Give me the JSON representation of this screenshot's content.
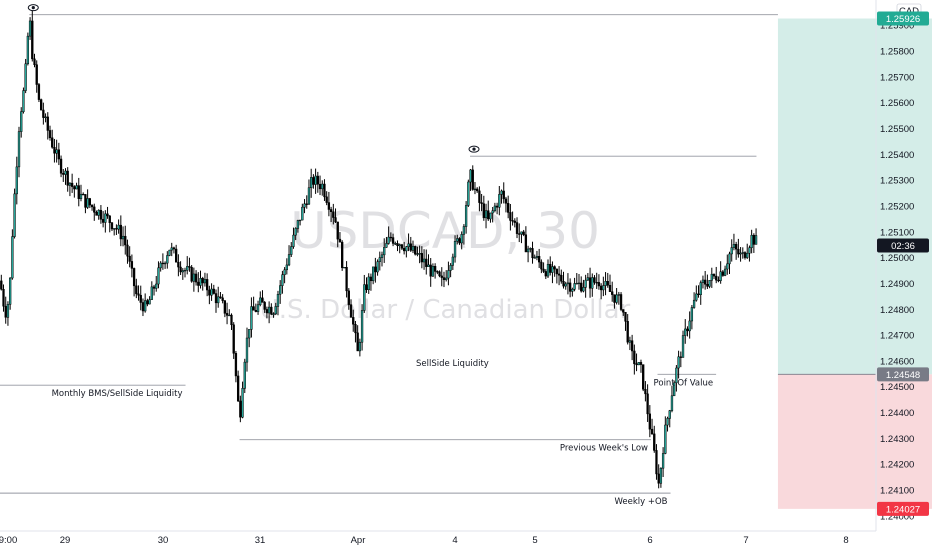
{
  "symbol_watermark": "USDCAD, 30",
  "description_watermark": "U.S. Dollar / Canadian Dollar",
  "currency": "CAD",
  "countdown": "02:36",
  "colors": {
    "up": "#26a69a",
    "down": "#000000",
    "profit_zone": "#d4ede8",
    "loss_zone": "#f9d9dc",
    "target_badge": "#22ab94",
    "entry_badge": "#787b86",
    "stop_badge": "#f23645",
    "countdown_badge": "#131722"
  },
  "chart_data": {
    "type": "candlestick",
    "title": "",
    "x_ticks": [
      "9:00",
      "29",
      "30",
      "31",
      "Apr",
      "4",
      "5",
      "6",
      "7",
      "8"
    ],
    "y_ticks": [
      "1.25900",
      "1.25800",
      "1.25700",
      "1.25600",
      "1.25500",
      "1.25400",
      "1.25300",
      "1.25200",
      "1.25100",
      "1.25000",
      "1.24900",
      "1.24800",
      "1.24700",
      "1.24600",
      "1.24500",
      "1.24400",
      "1.24300",
      "1.24200",
      "1.24100",
      "1.24000"
    ],
    "ylim": [
      1.2398,
      1.2599
    ],
    "close_path": [
      [
        0,
        1.2491
      ],
      [
        0.05,
        1.2483
      ],
      [
        0.1,
        1.2478
      ],
      [
        0.15,
        1.2488
      ],
      [
        0.2,
        1.2515
      ],
      [
        0.3,
        1.2554
      ],
      [
        0.38,
        1.2567
      ],
      [
        0.45,
        1.2594
      ],
      [
        0.5,
        1.2578
      ],
      [
        0.6,
        1.256
      ],
      [
        0.75,
        1.2548
      ],
      [
        0.9,
        1.2537
      ],
      [
        1.1,
        1.2528
      ],
      [
        1.3,
        1.2522
      ],
      [
        1.5,
        1.2518
      ],
      [
        1.7,
        1.2514
      ],
      [
        1.9,
        1.2508
      ],
      [
        2.0,
        1.2496
      ],
      [
        2.1,
        1.2485
      ],
      [
        2.25,
        1.248
      ],
      [
        2.45,
        1.2495
      ],
      [
        2.6,
        1.2504
      ],
      [
        2.8,
        1.2496
      ],
      [
        3.0,
        1.2492
      ],
      [
        3.2,
        1.2488
      ],
      [
        3.4,
        1.2482
      ],
      [
        3.55,
        1.2476
      ],
      [
        3.63,
        1.2452
      ],
      [
        3.68,
        1.2437
      ],
      [
        3.75,
        1.246
      ],
      [
        3.85,
        1.2478
      ],
      [
        4.0,
        1.2482
      ],
      [
        4.2,
        1.248
      ],
      [
        4.4,
        1.2498
      ],
      [
        4.6,
        1.2515
      ],
      [
        4.8,
        1.253
      ],
      [
        4.95,
        1.2528
      ],
      [
        5.15,
        1.2515
      ],
      [
        5.3,
        1.2492
      ],
      [
        5.4,
        1.2478
      ],
      [
        5.5,
        1.2462
      ],
      [
        5.6,
        1.2488
      ],
      [
        5.8,
        1.2497
      ],
      [
        6.0,
        1.2508
      ],
      [
        6.2,
        1.2505
      ],
      [
        6.45,
        1.25
      ],
      [
        6.65,
        1.2494
      ],
      [
        6.8,
        1.249
      ],
      [
        6.95,
        1.2502
      ],
      [
        7.1,
        1.251
      ],
      [
        7.22,
        1.2532
      ],
      [
        7.35,
        1.2522
      ],
      [
        7.5,
        1.2514
      ],
      [
        7.7,
        1.2525
      ],
      [
        7.85,
        1.2516
      ],
      [
        8.0,
        1.2508
      ],
      [
        8.15,
        1.2502
      ],
      [
        8.35,
        1.2496
      ],
      [
        8.6,
        1.2492
      ],
      [
        8.8,
        1.2489
      ],
      [
        9.0,
        1.249
      ],
      [
        9.2,
        1.2491
      ],
      [
        9.4,
        1.2486
      ],
      [
        9.55,
        1.2482
      ],
      [
        9.7,
        1.2462
      ],
      [
        9.85,
        1.2456
      ],
      [
        9.95,
        1.244
      ],
      [
        10.05,
        1.2424
      ],
      [
        10.12,
        1.2412
      ],
      [
        10.2,
        1.243
      ],
      [
        10.35,
        1.2452
      ],
      [
        10.5,
        1.2468
      ],
      [
        10.65,
        1.2482
      ],
      [
        10.8,
        1.249
      ],
      [
        10.95,
        1.2492
      ],
      [
        11.1,
        1.2495
      ],
      [
        11.25,
        1.2504
      ],
      [
        11.4,
        1.25
      ],
      [
        11.55,
        1.2508
      ],
      [
        11.62,
        1.2506
      ]
    ],
    "levels": [
      {
        "label": "",
        "price": 1.25941,
        "from_x": 0.45,
        "to_x": 11.95,
        "eye": true
      },
      {
        "label": "",
        "price": 1.25393,
        "from_x": 7.22,
        "to_x": 11.62,
        "eye": true
      },
      {
        "label": "Monthly BMS/SellSide Liquidity",
        "price": 1.24506,
        "from_x": 0,
        "to_x": 2.85
      },
      {
        "label": "Previous Week's Low",
        "price": 1.24295,
        "from_x": 3.68,
        "to_x": 10.0
      },
      {
        "label": "Weekly +OB",
        "price": 1.24088,
        "from_x": 0,
        "to_x": 10.3
      },
      {
        "label": "Point Of Value",
        "price": 1.24548,
        "from_x": 10.1,
        "to_x": 11.0
      }
    ],
    "annotations": [
      {
        "text": "SellSide Liquidity",
        "x": 6.95,
        "price": 1.2458
      }
    ],
    "position": {
      "target": 1.25926,
      "entry": 1.24548,
      "stop": 1.24027,
      "from_x": 11.95,
      "to_x": 14.7
    },
    "badges": [
      {
        "text": "1.25926",
        "price": 1.25926,
        "kind": "target"
      },
      {
        "text": "02:36",
        "price": 1.25047,
        "kind": "countdown"
      },
      {
        "text": "1.24548",
        "price": 1.24548,
        "kind": "entry"
      },
      {
        "text": "1.24027",
        "price": 1.24027,
        "kind": "stop"
      }
    ]
  }
}
